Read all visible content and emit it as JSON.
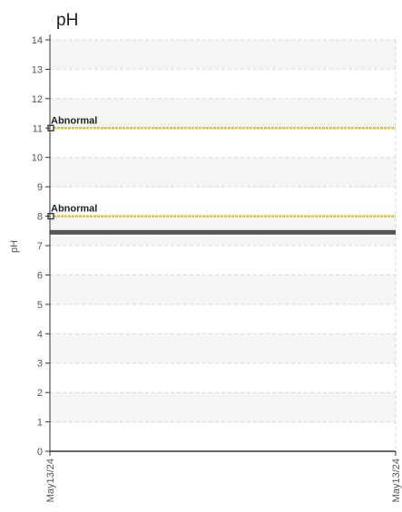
{
  "chart_data": {
    "type": "line",
    "title": "pH",
    "ylabel": "pH",
    "xlabel": "",
    "ylim": [
      0,
      14
    ],
    "yticks": [
      0,
      1,
      2,
      3,
      4,
      5,
      6,
      7,
      8,
      9,
      10,
      11,
      12,
      13,
      14
    ],
    "x_tick_labels": [
      "May13/24",
      "May13/24"
    ],
    "grid": true,
    "series": [
      {
        "values": [
          7.45,
          7.45
        ],
        "color": "#555555"
      }
    ],
    "reference_lines": [
      {
        "label": "Abnormal",
        "value": 11,
        "color": "#f2c400"
      },
      {
        "label": "Abnormal",
        "value": 8,
        "color": "#f2c400"
      }
    ]
  }
}
